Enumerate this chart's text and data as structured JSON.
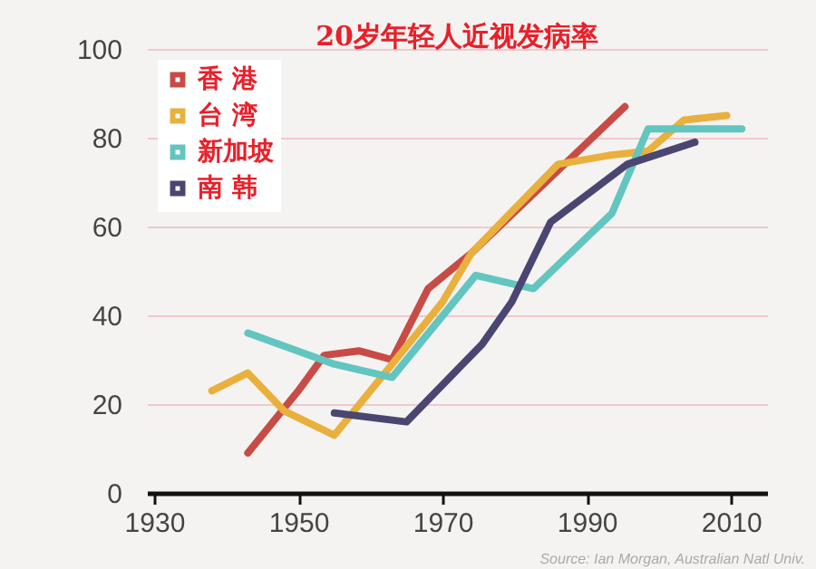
{
  "chart_data": {
    "type": "line",
    "title": "20岁年轻人近视发病率",
    "series": [
      {
        "name": "香 港",
        "color": "#c84b45",
        "x": [
          1943,
          1950,
          1953.6,
          1958.4,
          1963,
          1968,
          1974,
          1995.3
        ],
        "values": [
          9,
          23,
          31,
          32,
          30,
          46,
          54,
          87
        ]
      },
      {
        "name": "台 湾",
        "color": "#e9b03e",
        "x": [
          1938,
          1943,
          1948,
          1955,
          1963,
          1970,
          1974,
          1986,
          1993,
          1998.5,
          2003.5,
          2009.4
        ],
        "values": [
          23,
          27,
          18.5,
          13,
          29,
          43,
          54,
          74,
          76,
          77,
          84,
          85
        ]
      },
      {
        "name": "新加坡",
        "color": "#62c5c0",
        "x": [
          1943,
          1955,
          1963,
          1974.6,
          1982.6,
          1993.5,
          1998.5,
          2011.5
        ],
        "values": [
          36,
          29,
          26,
          49,
          46,
          63,
          82,
          82
        ]
      },
      {
        "name": "南 韩",
        "color": "#4a4571",
        "x": [
          1955,
          1965,
          1975.5,
          1979.6,
          1985,
          1995.6,
          2005
        ],
        "values": [
          18,
          16,
          33.5,
          43,
          61,
          74,
          79
        ]
      }
    ],
    "xlim": [
      1929,
      2015
    ],
    "xticks": [
      1930,
      1950,
      1970,
      1990,
      2010
    ],
    "ylim": [
      0,
      100
    ],
    "yticks": [
      0,
      20,
      40,
      60,
      80,
      100
    ],
    "grid": "y",
    "legend": "top left",
    "annotations": [
      "Source: Ian Morgan, Australian Natl Univ."
    ]
  }
}
